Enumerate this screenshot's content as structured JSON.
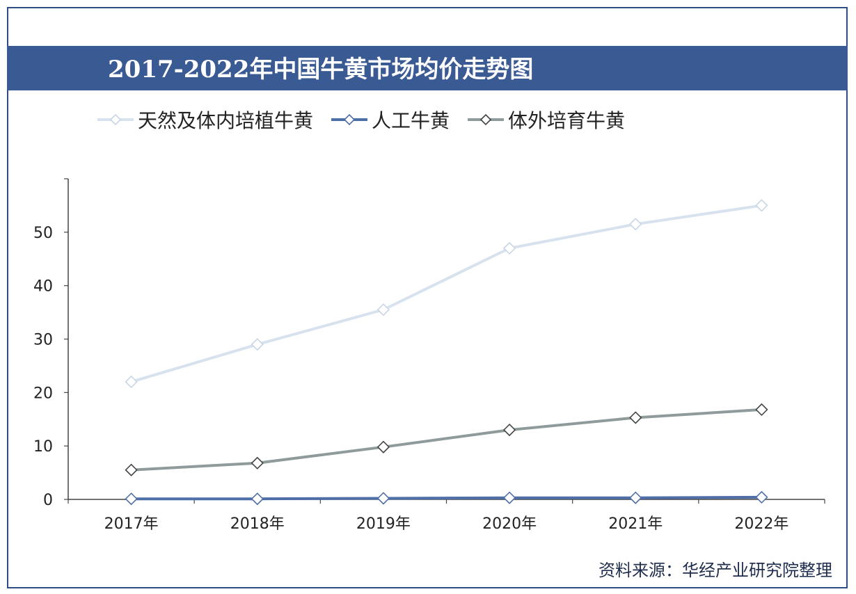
{
  "title": "2017-2022年中国牛黄市场均价走势图",
  "source": "资料来源：华经产业研究院整理",
  "colors": {
    "title_bar": "#3a5a93",
    "frame": "#2e4d84",
    "series": [
      "#d7e2ee",
      "#4f6fa8",
      "#8f9b9a"
    ]
  },
  "chart_data": {
    "type": "line",
    "title": "2017-2022年中国牛黄市场均价走势图",
    "categories": [
      "2017年",
      "2018年",
      "2019年",
      "2020年",
      "2021年",
      "2022年"
    ],
    "series": [
      {
        "name": "天然及体内培植牛黄",
        "values": [
          22.0,
          29.0,
          35.5,
          47.0,
          51.5,
          55.0
        ]
      },
      {
        "name": "人工牛黄",
        "values": [
          0.1,
          0.1,
          0.2,
          0.3,
          0.3,
          0.4
        ]
      },
      {
        "name": "体外培育牛黄",
        "values": [
          5.5,
          6.8,
          9.8,
          13.0,
          15.3,
          16.8
        ]
      }
    ],
    "xlabel": "",
    "ylabel": "",
    "ylim": [
      0,
      60
    ],
    "yticks": [
      0,
      10,
      20,
      30,
      40,
      50
    ],
    "legend": "top-left",
    "grid": false
  }
}
